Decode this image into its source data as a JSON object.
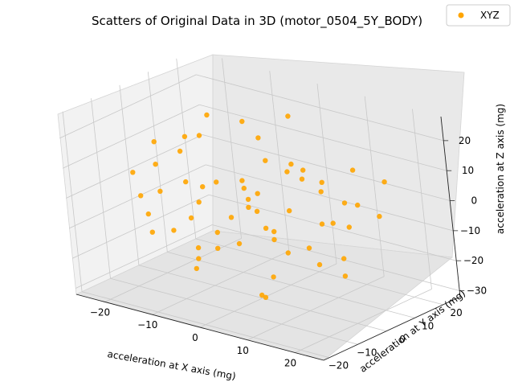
{
  "chart_data": {
    "type": "scatter",
    "projection": "3d",
    "title": "Scatters of Original Data in 3D (motor_0504_5Y_BODY)",
    "xlabel": "acceleration at X axis (mg)",
    "ylabel": "acceleration at Y axis (mg)",
    "zlabel": "acceleration at Z axis (mg)",
    "xlim": [
      -26,
      26
    ],
    "ylim": [
      -22,
      26
    ],
    "zlim": [
      -32,
      28
    ],
    "xticks": [
      -20,
      -10,
      0,
      10,
      20
    ],
    "yticks": [
      -20,
      -10,
      0,
      10,
      20
    ],
    "zticks": [
      -30,
      -20,
      -10,
      0,
      10,
      20
    ],
    "xtick_labels": [
      "−20",
      "−10",
      "0",
      "10",
      "20"
    ],
    "ytick_labels": [
      "−20",
      "−10",
      "0",
      "10",
      "20"
    ],
    "ztick_labels": [
      "−30",
      "−20",
      "−10",
      "0",
      "10",
      "20"
    ],
    "grid": true,
    "legend_position": "top-right",
    "series": [
      {
        "name": "XYZ",
        "color": "#FFA500",
        "points": [
          [
            -22,
            3,
            2
          ],
          [
            -20,
            -8,
            5
          ],
          [
            -18,
            10,
            -12
          ],
          [
            -21,
            -2,
            -18
          ],
          [
            -17,
            6,
            12
          ],
          [
            -15,
            -12,
            -5
          ],
          [
            -19,
            14,
            8
          ],
          [
            -14,
            2,
            -22
          ],
          [
            -16,
            -6,
            16
          ],
          [
            -12,
            11,
            -15
          ],
          [
            -10,
            -15,
            6
          ],
          [
            -13,
            8,
            20
          ],
          [
            -11,
            -4,
            -25
          ],
          [
            -9,
            16,
            -8
          ],
          [
            -8,
            -10,
            18
          ],
          [
            -7,
            5,
            -19
          ],
          [
            -6,
            -18,
            -4
          ],
          [
            -5,
            12,
            14
          ],
          [
            -4,
            -7,
            -14
          ],
          [
            -3,
            19,
            3
          ],
          [
            -2,
            -13,
            10
          ],
          [
            -1,
            6,
            -28
          ],
          [
            0,
            -20,
            -10
          ],
          [
            0,
            15,
            22
          ],
          [
            1,
            -3,
            0
          ],
          [
            2,
            9,
            -6
          ],
          [
            3,
            -16,
            15
          ],
          [
            4,
            4,
            -17
          ],
          [
            5,
            -9,
            7
          ],
          [
            6,
            17,
            -12
          ],
          [
            7,
            -5,
            19
          ],
          [
            8,
            11,
            2
          ],
          [
            9,
            -14,
            -21
          ],
          [
            10,
            2,
            11
          ],
          [
            11,
            -11,
            -3
          ],
          [
            12,
            13,
            -9
          ],
          [
            13,
            -2,
            17
          ],
          [
            14,
            7,
            -16
          ],
          [
            15,
            -17,
            4
          ],
          [
            16,
            10,
            13
          ],
          [
            17,
            -6,
            -11
          ],
          [
            18,
            3,
            6
          ],
          [
            19,
            -12,
            -2
          ],
          [
            20,
            14,
            9
          ],
          [
            21,
            -4,
            -14
          ],
          [
            22,
            8,
            1
          ],
          [
            -3,
            2,
            5
          ],
          [
            3,
            -1,
            -7
          ],
          [
            -6,
            7,
            -1
          ],
          [
            6,
            -8,
            3
          ],
          [
            -24,
            0,
            -8
          ],
          [
            24,
            -2,
            10
          ],
          [
            0,
            24,
            -4
          ],
          [
            0,
            -21,
            4
          ],
          [
            -1,
            1,
            26
          ],
          [
            2,
            -2,
            -30
          ],
          [
            -12,
            -3,
            3
          ],
          [
            12,
            4,
            -4
          ],
          [
            -5,
            -5,
            -10
          ],
          [
            5,
            5,
            10
          ]
        ]
      }
    ]
  }
}
